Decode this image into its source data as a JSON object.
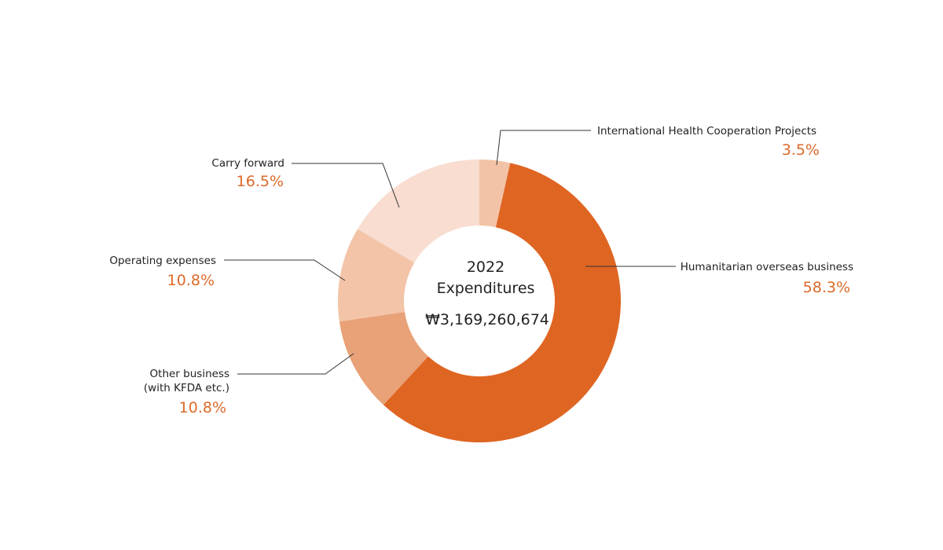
{
  "chart_data": {
    "type": "pie",
    "donut": true,
    "title": "2022 Expenditures",
    "title_lines": [
      "2022",
      "Expenditures"
    ],
    "total": "₩3,169,260,674",
    "legend": "none",
    "slices": [
      {
        "label_lines": [
          "International Health Cooperation Projects"
        ],
        "value": 3.5,
        "value_label": "3.5%",
        "color": "#f2c3a6"
      },
      {
        "label_lines": [
          "Humanitarian overseas business"
        ],
        "value": 58.3,
        "value_label": "58.3%",
        "color": "#df6522"
      },
      {
        "label_lines": [
          "Other business",
          "(with KFDA etc.)"
        ],
        "value": 10.8,
        "value_label": "10.8%",
        "color": "#e9a177"
      },
      {
        "label_lines": [
          "Operating expenses"
        ],
        "value": 10.8,
        "value_label": "10.8%",
        "color": "#f3c4a8"
      },
      {
        "label_lines": [
          "Carry forward"
        ],
        "value": 16.5,
        "value_label": "16.5%",
        "color": "#f8ddd0"
      }
    ]
  }
}
